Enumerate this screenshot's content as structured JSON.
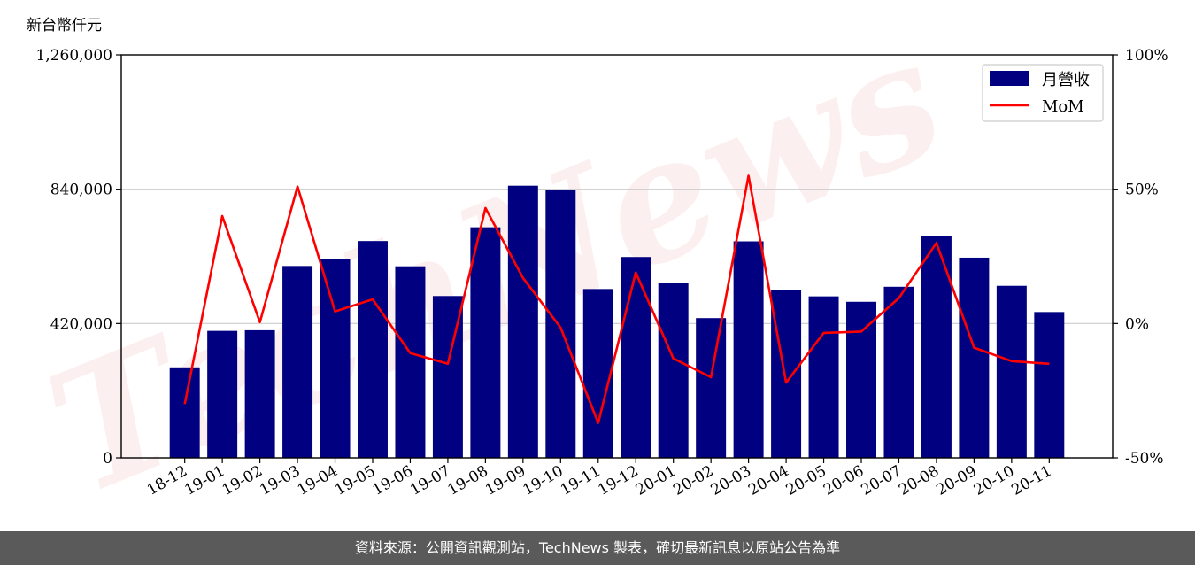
{
  "watermark_text": "TechNews",
  "unit_label": "新台幣仟元",
  "footer_text": "資料來源：公開資訊觀測站，TechNews 製表，確切最新訊息以原站公告為準",
  "colors": {
    "bar": "#000080",
    "line": "#ff0000",
    "grid": "#cccccc",
    "footer_bg": "#5a5a5a"
  },
  "chart_data": {
    "type": "bar",
    "categories": [
      "18-12",
      "19-01",
      "19-02",
      "19-03",
      "19-04",
      "19-05",
      "19-06",
      "19-07",
      "19-08",
      "19-09",
      "19-10",
      "19-11",
      "19-12",
      "20-01",
      "20-02",
      "20-03",
      "20-04",
      "20-05",
      "20-06",
      "20-07",
      "20-08",
      "20-09",
      "20-10",
      "20-11"
    ],
    "series": [
      {
        "name": "月營收",
        "type": "bar",
        "axis": "left",
        "values": [
          283000,
          397000,
          399000,
          600000,
          623000,
          678000,
          599000,
          506000,
          721000,
          851000,
          838000,
          528000,
          628000,
          548000,
          437000,
          677000,
          524000,
          505000,
          488000,
          535000,
          694000,
          626000,
          538000,
          456000
        ]
      },
      {
        "name": "MoM",
        "type": "line",
        "axis": "right",
        "unit": "%",
        "values": [
          -30,
          40,
          0.5,
          51,
          4.5,
          9,
          -11,
          -15,
          43,
          17,
          -1.5,
          -37,
          19,
          -13,
          -20,
          55,
          -22,
          -3.5,
          -3,
          9.5,
          30,
          -9,
          -14,
          -15
        ]
      }
    ],
    "y_left": {
      "ylim": [
        0,
        1260000
      ],
      "ticks": [
        "0",
        "420,000",
        "840,000",
        "1,260,000"
      ],
      "tick_values": [
        0,
        420000,
        840000,
        1260000
      ]
    },
    "y_right": {
      "ylim": [
        -50,
        100
      ],
      "ticks": [
        "-50%",
        "0%",
        "50%",
        "100%"
      ],
      "tick_values": [
        -50,
        0,
        50,
        100
      ]
    },
    "grid": "horizontal",
    "legend": {
      "position": "top-right",
      "entries": [
        "月營收",
        "MoM"
      ]
    }
  }
}
